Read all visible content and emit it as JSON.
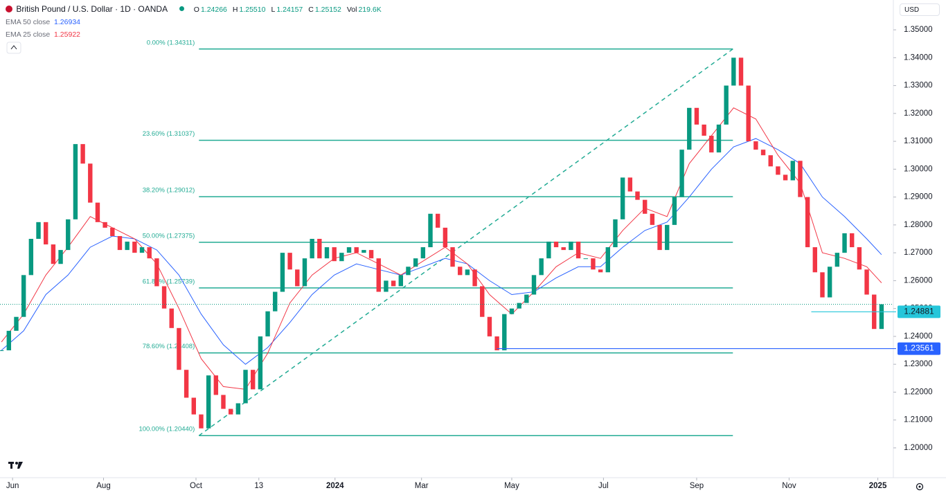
{
  "header": {
    "title": "British Pound / U.S. Dollar · 1D · OANDA",
    "currency": "USD",
    "ohlc": [
      {
        "key": "O",
        "value": "1.24266"
      },
      {
        "key": "H",
        "value": "1.25510"
      },
      {
        "key": "L",
        "value": "1.24157"
      },
      {
        "key": "C",
        "value": "1.25152"
      },
      {
        "key": "Vol",
        "value": "219.6K"
      }
    ]
  },
  "chart_data": {
    "type": "candlestick",
    "close": [
      1.235,
      1.242,
      1.247,
      1.262,
      1.275,
      1.281,
      1.273,
      1.266,
      1.271,
      1.282,
      1.309,
      1.302,
      1.288,
      1.281,
      1.279,
      1.276,
      1.271,
      1.274,
      1.27,
      1.272,
      1.268,
      1.258,
      1.25,
      1.243,
      1.228,
      1.218,
      1.212,
      1.207,
      1.226,
      1.219,
      1.214,
      1.212,
      1.216,
      1.228,
      1.221,
      1.24,
      1.249,
      1.256,
      1.27,
      1.264,
      1.258,
      1.268,
      1.275,
      1.268,
      1.272,
      1.267,
      1.27,
      1.272,
      1.27,
      1.271,
      1.268,
      1.256,
      1.26,
      1.258,
      1.262,
      1.265,
      1.268,
      1.272,
      1.284,
      1.279,
      1.272,
      1.265,
      1.262,
      1.264,
      1.258,
      1.247,
      1.24,
      1.235,
      1.248,
      1.25,
      1.252,
      1.255,
      1.262,
      1.268,
      1.274,
      1.272,
      1.271,
      1.274,
      1.268,
      1.268,
      1.264,
      1.263,
      1.272,
      1.282,
      1.297,
      1.292,
      1.289,
      1.284,
      1.28,
      1.271,
      1.28,
      1.29,
      1.307,
      1.322,
      1.316,
      1.312,
      1.306,
      1.316,
      1.33,
      1.34,
      1.33,
      1.31,
      1.307,
      1.305,
      1.301,
      1.298,
      1.296,
      1.303,
      1.29,
      1.272,
      1.263,
      1.254,
      1.265,
      1.27,
      1.277,
      1.272,
      1.264,
      1.255,
      1.24266,
      1.25152
    ],
    "up_color": "#089981",
    "down_color": "#f23645",
    "series": [
      {
        "name": "EMA 50 close",
        "color": "#2962ff",
        "x": [
          0,
          3,
          6,
          9,
          12,
          15,
          18,
          21,
          24,
          27,
          30,
          33,
          36,
          39,
          42,
          45,
          48,
          51,
          54,
          57,
          60,
          63,
          66,
          69,
          72,
          75,
          78,
          81,
          84,
          87,
          90,
          93,
          96,
          99,
          102,
          105,
          108,
          111,
          114,
          117,
          119
        ],
        "values": [
          1.235,
          1.242,
          1.255,
          1.262,
          1.272,
          1.276,
          1.275,
          1.271,
          1.262,
          1.248,
          1.237,
          1.23,
          1.236,
          1.245,
          1.255,
          1.262,
          1.266,
          1.264,
          1.262,
          1.265,
          1.268,
          1.266,
          1.26,
          1.255,
          1.256,
          1.261,
          1.265,
          1.265,
          1.272,
          1.278,
          1.281,
          1.29,
          1.3,
          1.308,
          1.311,
          1.307,
          1.302,
          1.29,
          1.283,
          1.275,
          1.26934
        ]
      },
      {
        "name": "EMA 25 close",
        "color": "#f23645",
        "x": [
          0,
          3,
          6,
          9,
          12,
          15,
          18,
          21,
          24,
          27,
          30,
          33,
          36,
          39,
          42,
          45,
          48,
          51,
          54,
          57,
          60,
          63,
          66,
          69,
          72,
          75,
          78,
          81,
          84,
          87,
          90,
          93,
          96,
          99,
          102,
          105,
          108,
          111,
          114,
          117,
          119
        ],
        "values": [
          1.238,
          1.248,
          1.262,
          1.272,
          1.283,
          1.279,
          1.275,
          1.266,
          1.25,
          1.232,
          1.222,
          1.221,
          1.234,
          1.252,
          1.262,
          1.268,
          1.27,
          1.266,
          1.262,
          1.267,
          1.272,
          1.266,
          1.255,
          1.248,
          1.256,
          1.265,
          1.27,
          1.268,
          1.278,
          1.286,
          1.283,
          1.302,
          1.312,
          1.322,
          1.318,
          1.305,
          1.295,
          1.27,
          1.268,
          1.265,
          1.25922
        ]
      }
    ],
    "fib": {
      "color": "#22ab94",
      "xrange": [
        26.7,
        98.9
      ],
      "levels": [
        {
          "label": "0.00% (1.34311)",
          "value": 1.34311
        },
        {
          "label": "23.60% (1.31037)",
          "value": 1.31037
        },
        {
          "label": "38.20% (1.29012)",
          "value": 1.29012
        },
        {
          "label": "50.00% (1.27375)",
          "value": 1.27375
        },
        {
          "label": "61.80% (1.25739)",
          "value": 1.25739
        },
        {
          "label": "78.60% (1.23408)",
          "value": 1.23408
        },
        {
          "label": "100.00% (1.20440)",
          "value": 1.2044
        }
      ]
    },
    "price_lines": [
      {
        "value": 1.24881,
        "color": "#26c6da",
        "from": 109.5
      },
      {
        "value": 1.23561,
        "color": "#2962ff",
        "from": 67
      }
    ],
    "xlim": [
      -0.2,
      120.6
    ],
    "xticks": [
      {
        "value": 1.5,
        "label": "Jun"
      },
      {
        "value": 13.8,
        "label": "Aug"
      },
      {
        "value": 26.3,
        "label": "Oct"
      },
      {
        "value": 34.8,
        "label": "13"
      },
      {
        "value": 45.1,
        "label": "2024"
      },
      {
        "value": 56.8,
        "label": "Mar"
      },
      {
        "value": 69,
        "label": "May"
      },
      {
        "value": 81.4,
        "label": "Jul"
      },
      {
        "value": 94,
        "label": "Sep"
      },
      {
        "value": 106.5,
        "label": "Nov"
      },
      {
        "value": 118.5,
        "label": "2025"
      }
    ],
    "ylim": [
      1.1893,
      1.3607
    ],
    "yticks": [
      {
        "value": 1.2,
        "label": "1.20000"
      },
      {
        "value": 1.21,
        "label": "1.21000"
      },
      {
        "value": 1.22,
        "label": "1.22000"
      },
      {
        "value": 1.23,
        "label": "1.23000"
      },
      {
        "value": 1.24,
        "label": "1.24000"
      },
      {
        "value": 1.25,
        "label": "1.25000"
      },
      {
        "value": 1.26,
        "label": "1.26000"
      },
      {
        "value": 1.27,
        "label": "1.27000"
      },
      {
        "value": 1.28,
        "label": "1.28000"
      },
      {
        "value": 1.29,
        "label": "1.29000"
      },
      {
        "value": 1.3,
        "label": "1.30000"
      },
      {
        "value": 1.31,
        "label": "1.31000"
      },
      {
        "value": 1.32,
        "label": "1.32000"
      },
      {
        "value": 1.33,
        "label": "1.33000"
      },
      {
        "value": 1.34,
        "label": "1.34000"
      },
      {
        "value": 1.35,
        "label": "1.35000"
      }
    ]
  }
}
